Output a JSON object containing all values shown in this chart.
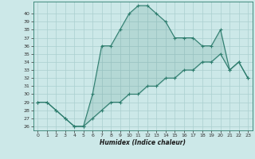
{
  "title": "",
  "xlabel": "Humidex (Indice chaleur)",
  "x_upper": [
    0,
    1,
    2,
    3,
    4,
    5,
    6,
    7,
    8,
    9,
    10,
    11,
    12,
    13,
    14,
    15,
    16,
    17,
    18,
    19,
    20,
    21,
    22,
    23
  ],
  "y_upper": [
    29,
    29,
    28,
    27,
    26,
    26,
    30,
    36,
    36,
    38,
    40,
    41,
    41,
    40,
    39,
    37,
    37,
    37,
    36,
    36,
    38,
    33,
    34,
    32
  ],
  "x_lower": [
    0,
    1,
    2,
    3,
    4,
    5,
    6,
    7,
    8,
    9,
    10,
    11,
    12,
    13,
    14,
    15,
    16,
    17,
    18,
    19,
    20,
    21,
    22,
    23
  ],
  "y_lower": [
    29,
    29,
    28,
    27,
    26,
    26,
    27,
    28,
    29,
    29,
    30,
    30,
    31,
    31,
    32,
    32,
    33,
    33,
    34,
    34,
    35,
    33,
    34,
    32
  ],
  "line_color": "#2e7d6e",
  "bg_color": "#cce8e8",
  "grid_color": "#aacfcf",
  "ylim": [
    25.5,
    41.5
  ],
  "xlim": [
    -0.5,
    23.5
  ],
  "yticks": [
    26,
    27,
    28,
    29,
    30,
    31,
    32,
    33,
    34,
    35,
    36,
    37,
    38,
    39,
    40
  ],
  "xticks": [
    0,
    1,
    2,
    3,
    4,
    5,
    6,
    7,
    8,
    9,
    10,
    11,
    12,
    13,
    14,
    15,
    16,
    17,
    18,
    19,
    20,
    21,
    22,
    23
  ]
}
